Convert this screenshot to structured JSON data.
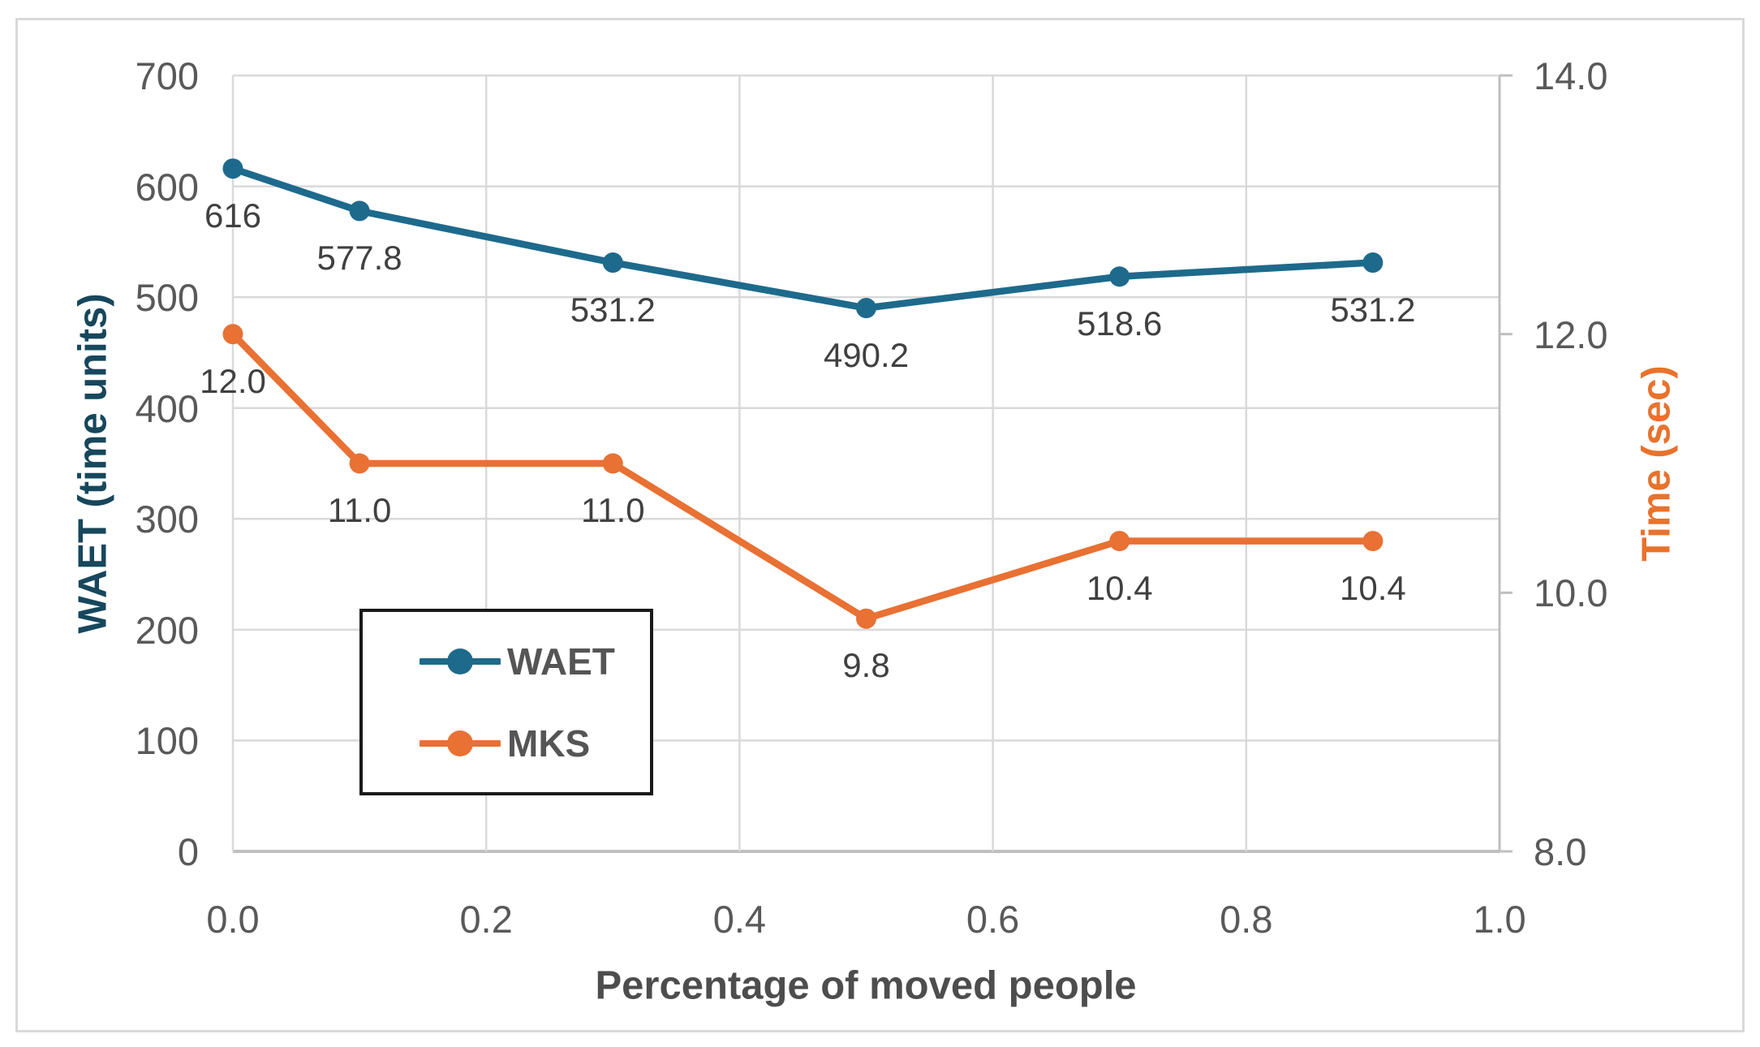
{
  "chart_data": {
    "type": "line",
    "title": "",
    "x": {
      "title": "Percentage of moved people",
      "min": 0,
      "max": 1,
      "tick_values": [
        0.0,
        0.2,
        0.4,
        0.6,
        0.8,
        1.0
      ],
      "tick_labels": [
        "0.0",
        "0.2",
        "0.4",
        "0.6",
        "0.8",
        "1.0"
      ]
    },
    "y_left": {
      "title": "WAET (time units)",
      "min": 0,
      "max": 700,
      "tick_values": [
        0,
        100,
        200,
        300,
        400,
        500,
        600,
        700
      ],
      "tick_labels": [
        "0",
        "100",
        "200",
        "300",
        "400",
        "500",
        "600",
        "700"
      ],
      "title_color": "#17475C"
    },
    "y_right": {
      "title": "Time (sec)",
      "min": 8.0,
      "max": 14.0,
      "tick_values": [
        8.0,
        10.0,
        12.0,
        14.0
      ],
      "tick_labels": [
        "8.0",
        "10.0",
        "12.0",
        "14.0"
      ],
      "title_color": "#E8722C"
    },
    "series": [
      {
        "name": "WAET",
        "axis": "left",
        "color": "#1E6A8C",
        "x": [
          0.0,
          0.1,
          0.3,
          0.5,
          0.7,
          0.9
        ],
        "values": [
          616,
          577.8,
          531.2,
          490.2,
          518.6,
          531.2
        ],
        "labels": [
          "616",
          "577.8",
          "531.2",
          "490.2",
          "518.6",
          "531.2"
        ]
      },
      {
        "name": "MKS",
        "axis": "right",
        "color": "#E87133",
        "x": [
          0.0,
          0.1,
          0.3,
          0.5,
          0.7,
          0.9
        ],
        "values": [
          12.0,
          11.0,
          11.0,
          9.8,
          10.4,
          10.4
        ],
        "labels": [
          "12.0",
          "11.0",
          "11.0",
          "9.8",
          "10.4",
          "10.4"
        ]
      }
    ],
    "legend": {
      "entries": [
        "WAET",
        "MKS"
      ],
      "position": "inside-lower-left"
    },
    "grid": true,
    "colors": {
      "gridline": "#D9D9D9",
      "axis_line": "#BFBFBF",
      "tick_label": "#595959",
      "data_label": "#404040",
      "legend_text": "#555555",
      "x_title": "#4D4D4D",
      "figure_border": "#D9D9D9",
      "legend_border": "#1a1a1a",
      "background": "#FFFFFF"
    }
  }
}
